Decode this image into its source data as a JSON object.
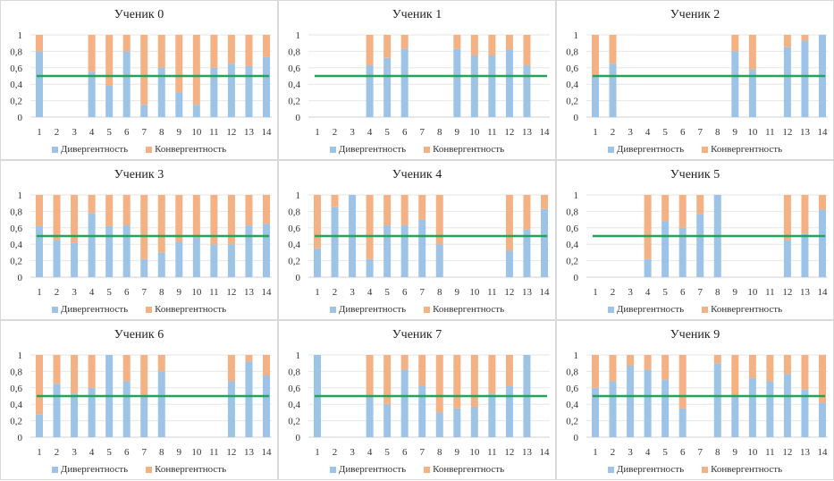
{
  "chart_data": [
    {
      "type": "bar",
      "stacked": true,
      "title": "Ученик 0",
      "categories": [
        "1",
        "2",
        "3",
        "4",
        "5",
        "6",
        "7",
        "8",
        "9",
        "10",
        "11",
        "12",
        "13",
        "14"
      ],
      "series": [
        {
          "name": "Дивергентность",
          "values": [
            0.8,
            null,
            null,
            0.55,
            0.38,
            0.8,
            0.15,
            0.6,
            0.3,
            0.15,
            0.6,
            0.65,
            0.62,
            0.73
          ]
        },
        {
          "name": "Конвергентность",
          "values": [
            0.2,
            null,
            null,
            0.45,
            0.62,
            0.2,
            0.85,
            0.4,
            0.7,
            0.85,
            0.4,
            0.35,
            0.38,
            0.27
          ]
        }
      ],
      "threshold": 0.5,
      "ylim": [
        0,
        1
      ],
      "yticks": [
        "0",
        "0,2",
        "0,4",
        "0,6",
        "0,8",
        "1"
      ],
      "legend": "bottom",
      "grid": true
    },
    {
      "type": "bar",
      "stacked": true,
      "title": "Ученик 1",
      "categories": [
        "1",
        "2",
        "3",
        "4",
        "5",
        "6",
        "7",
        "8",
        "9",
        "10",
        "11",
        "12",
        "13",
        "14"
      ],
      "series": [
        {
          "name": "Дивергентность",
          "values": [
            null,
            null,
            null,
            0.63,
            0.72,
            0.83,
            null,
            null,
            0.83,
            0.75,
            0.75,
            0.82,
            0.63,
            null
          ]
        },
        {
          "name": "Конвергентность",
          "values": [
            null,
            null,
            null,
            0.37,
            0.28,
            0.17,
            null,
            null,
            0.17,
            0.25,
            0.25,
            0.18,
            0.37,
            null
          ]
        }
      ],
      "threshold": 0.5,
      "ylim": [
        0,
        1
      ],
      "yticks": [
        "0",
        "0,2",
        "0,4",
        "0,6",
        "0,8",
        "1"
      ],
      "legend": "bottom",
      "grid": true
    },
    {
      "type": "bar",
      "stacked": true,
      "title": "Ученик 2",
      "categories": [
        "1",
        "2",
        "3",
        "4",
        "5",
        "6",
        "7",
        "8",
        "9",
        "10",
        "11",
        "12",
        "13",
        "14"
      ],
      "series": [
        {
          "name": "Дивергентность",
          "values": [
            0.5,
            0.65,
            null,
            null,
            null,
            null,
            null,
            null,
            0.8,
            0.58,
            null,
            0.85,
            0.93,
            1.0
          ]
        },
        {
          "name": "Конвергентность",
          "values": [
            0.5,
            0.35,
            null,
            null,
            null,
            null,
            null,
            null,
            0.2,
            0.42,
            null,
            0.15,
            0.07,
            0
          ]
        }
      ],
      "threshold": 0.5,
      "ylim": [
        0,
        1
      ],
      "yticks": [
        "0",
        "0,2",
        "0,4",
        "0,6",
        "0,8",
        "1"
      ],
      "legend": "bottom",
      "grid": true
    },
    {
      "type": "bar",
      "stacked": true,
      "title": "Ученик 3",
      "categories": [
        "1",
        "2",
        "3",
        "4",
        "5",
        "6",
        "7",
        "8",
        "9",
        "10",
        "11",
        "12",
        "13",
        "14"
      ],
      "series": [
        {
          "name": "Дивергентность",
          "values": [
            0.62,
            0.45,
            0.42,
            0.78,
            0.62,
            0.63,
            0.22,
            0.3,
            0.43,
            0.48,
            0.4,
            0.4,
            0.63,
            0.65
          ]
        },
        {
          "name": "Конвергентность",
          "values": [
            0.38,
            0.55,
            0.58,
            0.22,
            0.38,
            0.37,
            0.78,
            0.7,
            0.57,
            0.52,
            0.6,
            0.6,
            0.37,
            0.35
          ]
        }
      ],
      "threshold": 0.5,
      "ylim": [
        0,
        1
      ],
      "yticks": [
        "0",
        "0,2",
        "0,4",
        "0,6",
        "0,8",
        "1"
      ],
      "legend": "bottom",
      "grid": true
    },
    {
      "type": "bar",
      "stacked": true,
      "title": "Ученик 4",
      "categories": [
        "1",
        "2",
        "3",
        "4",
        "5",
        "6",
        "7",
        "8",
        "9",
        "10",
        "11",
        "12",
        "13",
        "14"
      ],
      "series": [
        {
          "name": "Дивергентность",
          "values": [
            0.35,
            0.85,
            1.0,
            0.22,
            0.63,
            0.63,
            0.7,
            0.4,
            null,
            null,
            null,
            0.32,
            0.58,
            0.83
          ]
        },
        {
          "name": "Конвергентность",
          "values": [
            0.65,
            0.15,
            0,
            0.78,
            0.37,
            0.37,
            0.3,
            0.6,
            null,
            null,
            null,
            0.68,
            0.42,
            0.17
          ]
        }
      ],
      "threshold": 0.5,
      "ylim": [
        0,
        1
      ],
      "yticks": [
        "0",
        "0,2",
        "0,4",
        "0,6",
        "0,8",
        "1"
      ],
      "legend": "bottom",
      "grid": true
    },
    {
      "type": "bar",
      "stacked": true,
      "title": "Ученик 5",
      "categories": [
        "1",
        "2",
        "3",
        "4",
        "5",
        "6",
        "7",
        "8",
        "9",
        "10",
        "11",
        "12",
        "13",
        "14"
      ],
      "series": [
        {
          "name": "Дивергентность",
          "values": [
            null,
            null,
            null,
            0.22,
            0.68,
            0.6,
            0.77,
            1.0,
            null,
            null,
            null,
            0.45,
            0.53,
            0.82
          ]
        },
        {
          "name": "Конвергентность",
          "values": [
            null,
            null,
            null,
            0.78,
            0.32,
            0.4,
            0.23,
            0,
            null,
            null,
            null,
            0.55,
            0.47,
            0.18
          ]
        }
      ],
      "threshold": 0.5,
      "ylim": [
        0,
        1
      ],
      "yticks": [
        "0",
        "0,2",
        "0,4",
        "0,6",
        "0,8",
        "1"
      ],
      "legend": "bottom",
      "grid": true
    },
    {
      "type": "bar",
      "stacked": true,
      "title": "Ученик 6",
      "categories": [
        "1",
        "2",
        "3",
        "4",
        "5",
        "6",
        "7",
        "8",
        "9",
        "10",
        "11",
        "12",
        "13",
        "14"
      ],
      "series": [
        {
          "name": "Дивергентность",
          "values": [
            0.28,
            0.65,
            0.53,
            0.6,
            1.0,
            0.68,
            0.5,
            0.8,
            null,
            null,
            null,
            0.68,
            0.92,
            0.75
          ]
        },
        {
          "name": "Конвергентность",
          "values": [
            0.72,
            0.35,
            0.47,
            0.4,
            0,
            0.32,
            0.5,
            0.2,
            null,
            null,
            null,
            0.32,
            0.08,
            0.25
          ]
        }
      ],
      "threshold": 0.5,
      "ylim": [
        0,
        1
      ],
      "yticks": [
        "0",
        "0,2",
        "0,4",
        "0,6",
        "0,8",
        "1"
      ],
      "legend": "bottom",
      "grid": true
    },
    {
      "type": "bar",
      "stacked": true,
      "title": "Ученик 7",
      "categories": [
        "1",
        "2",
        "3",
        "4",
        "5",
        "6",
        "7",
        "8",
        "9",
        "10",
        "11",
        "12",
        "13",
        "14"
      ],
      "series": [
        {
          "name": "Дивергентность",
          "values": [
            1.0,
            null,
            null,
            0.5,
            0.4,
            0.82,
            0.63,
            0.3,
            0.35,
            0.37,
            0.53,
            0.62,
            1.0,
            null
          ]
        },
        {
          "name": "Конвергентность",
          "values": [
            0,
            null,
            null,
            0.5,
            0.6,
            0.18,
            0.37,
            0.7,
            0.65,
            0.63,
            0.47,
            0.38,
            0,
            null
          ]
        }
      ],
      "threshold": 0.5,
      "ylim": [
        0,
        1
      ],
      "yticks": [
        "0",
        "0,2",
        "0,4",
        "0,6",
        "0,8",
        "1"
      ],
      "legend": "bottom",
      "grid": true
    },
    {
      "type": "bar",
      "stacked": true,
      "title": "Ученик 9",
      "categories": [
        "1",
        "2",
        "3",
        "4",
        "5",
        "6",
        "7",
        "8",
        "9",
        "10",
        "11",
        "12",
        "13",
        "14"
      ],
      "series": [
        {
          "name": "Дивергентность",
          "values": [
            0.6,
            0.68,
            0.87,
            0.82,
            0.7,
            0.35,
            null,
            0.9,
            0.5,
            0.72,
            0.68,
            0.77,
            0.58,
            0.42
          ]
        },
        {
          "name": "Конвергентность",
          "values": [
            0.4,
            0.32,
            0.13,
            0.18,
            0.3,
            0.65,
            null,
            0.1,
            0.5,
            0.28,
            0.32,
            0.23,
            0.42,
            0.58
          ]
        }
      ],
      "threshold": 0.5,
      "ylim": [
        0,
        1
      ],
      "yticks": [
        "0",
        "0,2",
        "0,4",
        "0,6",
        "0,8",
        "1"
      ],
      "legend": "bottom",
      "grid": true
    }
  ],
  "colors": {
    "divergent": "#9DC3E6",
    "convergent": "#F4B183",
    "threshold": "#21A35A",
    "grid": "#e6e6e6",
    "text": "#333333"
  },
  "legend_labels": {
    "divergent": "Дивергентность",
    "convergent": "Конвергентность"
  }
}
